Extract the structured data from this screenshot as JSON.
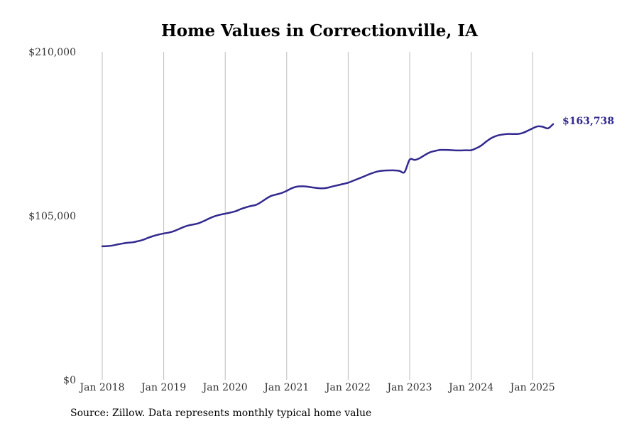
{
  "chart_data": {
    "type": "line",
    "title": "Home Values in Correctionville, IA",
    "xlabel": "",
    "ylabel": "",
    "ylim": [
      0,
      210000
    ],
    "y_ticks": [
      {
        "value": 0,
        "label": "$0"
      },
      {
        "value": 105000,
        "label": "$105,000"
      },
      {
        "value": 210000,
        "label": "$210,000"
      }
    ],
    "x_ticks": [
      {
        "date": "2018-01",
        "label": "Jan 2018"
      },
      {
        "date": "2019-01",
        "label": "Jan 2019"
      },
      {
        "date": "2020-01",
        "label": "Jan 2020"
      },
      {
        "date": "2021-01",
        "label": "Jan 2021"
      },
      {
        "date": "2022-01",
        "label": "Jan 2022"
      },
      {
        "date": "2023-01",
        "label": "Jan 2023"
      },
      {
        "date": "2024-01",
        "label": "Jan 2024"
      },
      {
        "date": "2025-01",
        "label": "Jan 2025"
      }
    ],
    "grid": "vertical",
    "line_color": "#332a8f",
    "end_label": "$163,738",
    "series": [
      {
        "points": [
          [
            "2018-01",
            85500
          ],
          [
            "2018-02",
            85600
          ],
          [
            "2018-03",
            86000
          ],
          [
            "2018-04",
            86700
          ],
          [
            "2018-05",
            87300
          ],
          [
            "2018-06",
            87800
          ],
          [
            "2018-07",
            88100
          ],
          [
            "2018-08",
            88800
          ],
          [
            "2018-09",
            89700
          ],
          [
            "2018-10",
            91000
          ],
          [
            "2018-11",
            92100
          ],
          [
            "2018-12",
            93000
          ],
          [
            "2019-01",
            93700
          ],
          [
            "2019-02",
            94300
          ],
          [
            "2019-03",
            95200
          ],
          [
            "2019-04",
            96600
          ],
          [
            "2019-05",
            98000
          ],
          [
            "2019-06",
            99000
          ],
          [
            "2019-07",
            99600
          ],
          [
            "2019-08",
            100500
          ],
          [
            "2019-09",
            101900
          ],
          [
            "2019-10",
            103500
          ],
          [
            "2019-11",
            104800
          ],
          [
            "2019-12",
            105700
          ],
          [
            "2020-01",
            106400
          ],
          [
            "2020-02",
            107100
          ],
          [
            "2020-03",
            107900
          ],
          [
            "2020-04",
            109300
          ],
          [
            "2020-05",
            110400
          ],
          [
            "2020-06",
            111300
          ],
          [
            "2020-07",
            112000
          ],
          [
            "2020-08",
            113800
          ],
          [
            "2020-09",
            116000
          ],
          [
            "2020-10",
            117800
          ],
          [
            "2020-11",
            118700
          ],
          [
            "2020-12",
            119600
          ],
          [
            "2021-01",
            121000
          ],
          [
            "2021-02",
            122700
          ],
          [
            "2021-03",
            123700
          ],
          [
            "2021-04",
            123900
          ],
          [
            "2021-05",
            123700
          ],
          [
            "2021-06",
            123200
          ],
          [
            "2021-07",
            122800
          ],
          [
            "2021-08",
            122600
          ],
          [
            "2021-09",
            123000
          ],
          [
            "2021-10",
            123900
          ],
          [
            "2021-11",
            124600
          ],
          [
            "2021-12",
            125400
          ],
          [
            "2022-01",
            126200
          ],
          [
            "2022-02",
            127500
          ],
          [
            "2022-03",
            128800
          ],
          [
            "2022-04",
            130100
          ],
          [
            "2022-05",
            131500
          ],
          [
            "2022-06",
            132700
          ],
          [
            "2022-07",
            133600
          ],
          [
            "2022-08",
            134000
          ],
          [
            "2022-09",
            134100
          ],
          [
            "2022-10",
            134100
          ],
          [
            "2022-11",
            133800
          ],
          [
            "2022-12",
            133000
          ],
          [
            "2023-01",
            141000
          ],
          [
            "2023-02",
            140800
          ],
          [
            "2023-03",
            142000
          ],
          [
            "2023-04",
            144000
          ],
          [
            "2023-05",
            145700
          ],
          [
            "2023-06",
            146600
          ],
          [
            "2023-07",
            147200
          ],
          [
            "2023-08",
            147200
          ],
          [
            "2023-09",
            147100
          ],
          [
            "2023-10",
            146900
          ],
          [
            "2023-11",
            146900
          ],
          [
            "2023-12",
            147000
          ],
          [
            "2024-01",
            147000
          ],
          [
            "2024-02",
            148300
          ],
          [
            "2024-03",
            150100
          ],
          [
            "2024-04",
            152700
          ],
          [
            "2024-05",
            154900
          ],
          [
            "2024-06",
            156300
          ],
          [
            "2024-07",
            157000
          ],
          [
            "2024-08",
            157400
          ],
          [
            "2024-09",
            157400
          ],
          [
            "2024-10",
            157400
          ],
          [
            "2024-11",
            158000
          ],
          [
            "2024-12",
            159400
          ],
          [
            "2025-01",
            161000
          ],
          [
            "2025-02",
            162300
          ],
          [
            "2025-03",
            162000
          ],
          [
            "2025-04",
            161000
          ],
          [
            "2025-05",
            163738
          ]
        ]
      }
    ]
  },
  "footer": {
    "source": "Source: Zillow. Data represents monthly typical home value"
  }
}
